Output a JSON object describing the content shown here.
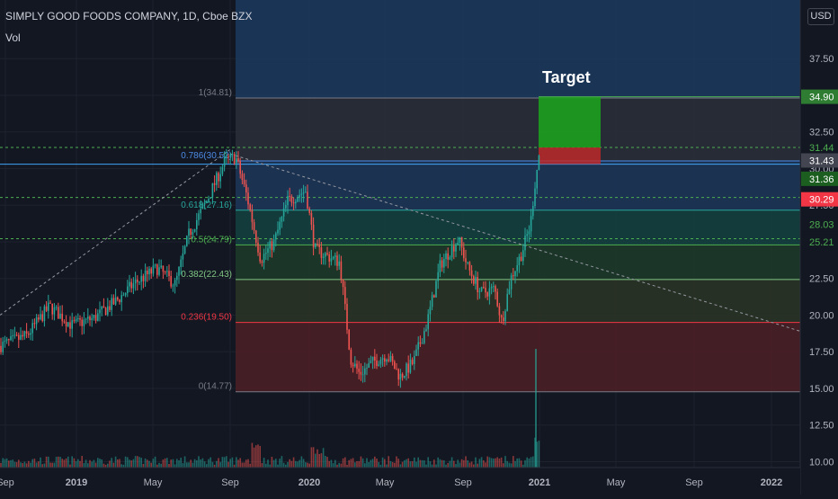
{
  "header": {
    "symbol_line": "SIMPLY GOOD FOODS COMPANY, 1D, Cboe BZX",
    "indicator": "Vol",
    "currency": "USD"
  },
  "chart_data": {
    "type": "candlestick",
    "ylim": [
      9.6,
      41.5
    ],
    "price_ticks": [
      "37.50",
      "35.00",
      "32.50",
      "30.00",
      "27.50",
      "25.00",
      "22.50",
      "20.00",
      "17.50",
      "15.00",
      "12.50",
      "10.00"
    ],
    "price_tick_values": [
      37.5,
      35,
      32.5,
      30,
      27.5,
      25,
      22.5,
      20,
      17.5,
      15,
      12.5,
      10
    ],
    "x_ticks": [
      "Sep",
      "2019",
      "May",
      "Sep",
      "2020",
      "May",
      "Sep",
      "2021",
      "May",
      "Sep",
      "2022"
    ],
    "fib_levels": [
      {
        "ratio": "1",
        "label": "1(34.81)",
        "price": 34.81,
        "color": "#787b86"
      },
      {
        "ratio": "0.786",
        "label": "0.786(30.52)",
        "price": 30.52,
        "color": "#4c8be6"
      },
      {
        "ratio": "0.618",
        "label": "0.618(27.16)",
        "price": 27.16,
        "color": "#26a69a"
      },
      {
        "ratio": "0.5",
        "label": "0.5(24.79)",
        "price": 24.79,
        "color": "#4caf50"
      },
      {
        "ratio": "0.382",
        "label": "0.382(22.43)",
        "price": 22.43,
        "color": "#81c784"
      },
      {
        "ratio": "0.236",
        "label": "0.236(19.50)",
        "price": 19.5,
        "color": "#f23645"
      },
      {
        "ratio": "0",
        "label": "0(14.77)",
        "price": 14.77,
        "color": "#787b86"
      }
    ],
    "price_badges": [
      {
        "text": "34.90",
        "price": 34.9,
        "bg": "#2e7d32",
        "fg": "#ffffff"
      },
      {
        "text": "31.44",
        "price": 31.44,
        "bg": "#131722",
        "fg": "#4caf50"
      },
      {
        "text": "31.43",
        "price": 30.55,
        "bg": "#434651",
        "fg": "#ffffff"
      },
      {
        "text": "31.36",
        "price": 29.3,
        "bg": "#1b5e20",
        "fg": "#ffffff"
      },
      {
        "text": "30.29",
        "price": 27.9,
        "bg": "#f23645",
        "fg": "#ffffff"
      },
      {
        "text": "28.03",
        "price": 26.2,
        "bg": "#131722",
        "fg": "#4caf50"
      },
      {
        "text": "25.21",
        "price": 25.0,
        "bg": "#131722",
        "fg": "#4caf50"
      }
    ],
    "annotation": "Target",
    "target_box": {
      "top": 34.9,
      "mid": 31.44,
      "bottom": 30.3
    },
    "colors": {
      "up": "#26a69a",
      "down": "#ef5350",
      "bg": "#131722",
      "grid": "#1e222d",
      "volume_up": "#26a69a",
      "volume_down": "#ef5350"
    }
  }
}
